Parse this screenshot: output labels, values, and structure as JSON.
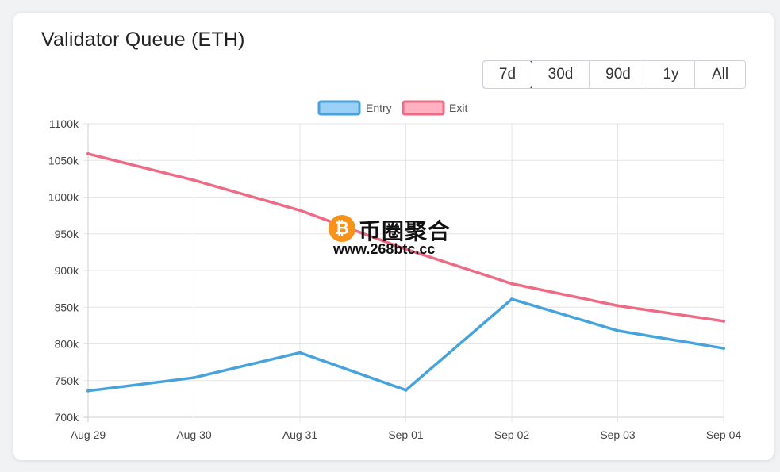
{
  "page": {
    "title": "Validator Queue (ETH)"
  },
  "range": {
    "options": [
      "7d",
      "30d",
      "90d",
      "1y",
      "All"
    ],
    "active": "7d"
  },
  "watermark": {
    "cn": "币圈聚合",
    "url": "www.268btc.cc",
    "coin": "₿"
  },
  "chart_data": {
    "type": "line",
    "title": "",
    "xlabel": "",
    "ylabel": "",
    "categories": [
      "Aug 29",
      "Aug 30",
      "Aug 31",
      "Sep 01",
      "Sep 02",
      "Sep 03",
      "Sep 04"
    ],
    "series": [
      {
        "name": "Entry",
        "color": "#46a3dd",
        "fill": "#9ad0f5",
        "values": [
          736,
          754,
          788,
          737,
          861,
          818,
          794
        ]
      },
      {
        "name": "Exit",
        "color": "#ee6b86",
        "fill": "#ffb1c1",
        "values": [
          1059,
          1023,
          982,
          929,
          882,
          852,
          831
        ]
      }
    ],
    "ylim": [
      700,
      1100
    ],
    "yticks": [
      700,
      750,
      800,
      850,
      900,
      950,
      1000,
      1050,
      1100
    ],
    "ytick_labels": [
      "700k",
      "750k",
      "800k",
      "850k",
      "900k",
      "950k",
      "1000k",
      "1050k",
      "1100k"
    ],
    "unit_suffix": "k",
    "grid": true,
    "legend": "top-center"
  }
}
